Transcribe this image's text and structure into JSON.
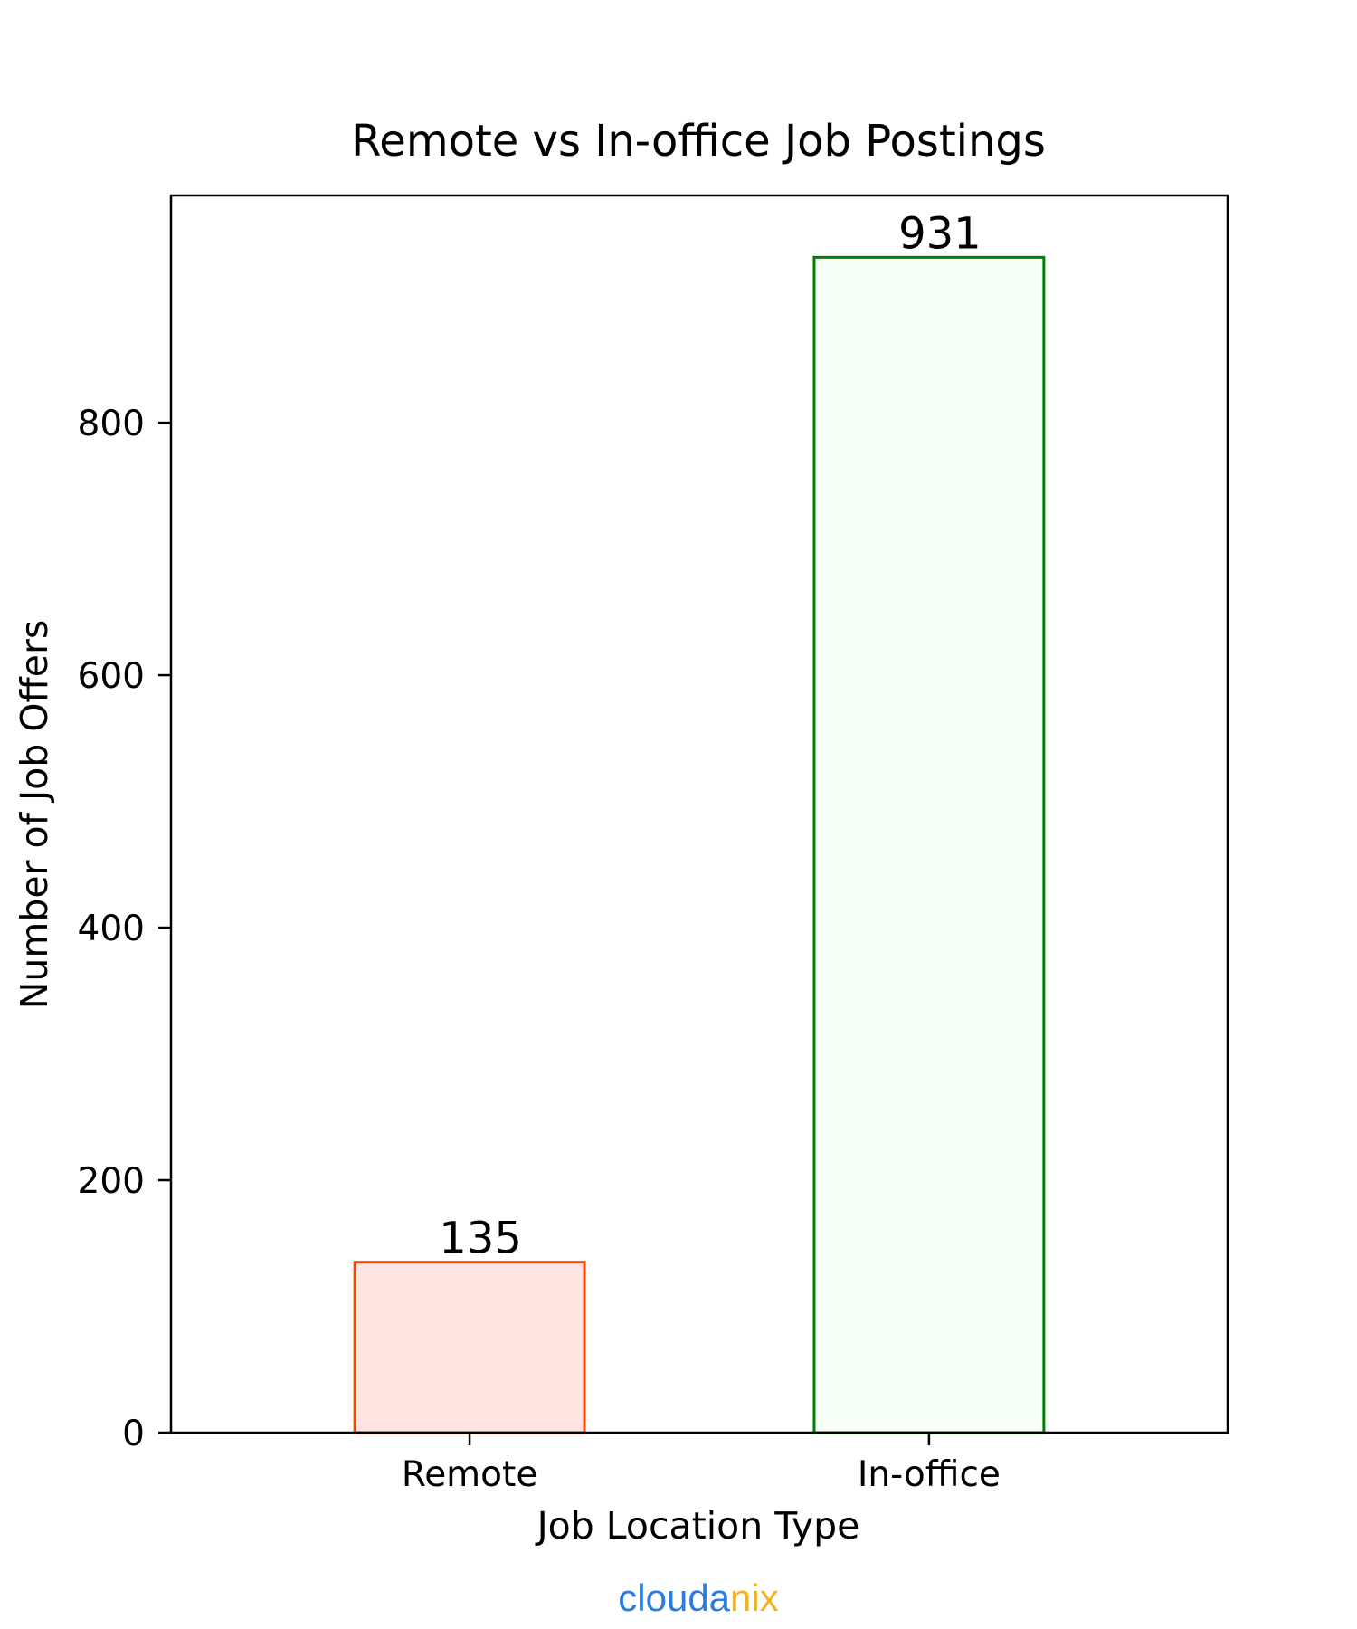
{
  "chart_data": {
    "type": "bar",
    "title": "Remote vs In-office Job Postings",
    "xlabel": "Job Location Type",
    "ylabel": "Number of Job Offers",
    "categories": [
      "Remote",
      "In-office"
    ],
    "values": [
      135,
      931
    ],
    "data_labels": [
      "135",
      "931"
    ],
    "ylim": [
      0,
      980
    ],
    "yticks": [
      0,
      200,
      400,
      600,
      800
    ],
    "grid": false,
    "legend": "none",
    "bar_fill_colors": [
      "#ffe4e1",
      "#f5fff5"
    ],
    "bar_edge_colors": [
      "#ff4500",
      "#008000"
    ]
  },
  "watermark": {
    "part1": "clouda",
    "part2": "nix",
    "color1": "#2b7de0",
    "color2": "#f0b324"
  }
}
